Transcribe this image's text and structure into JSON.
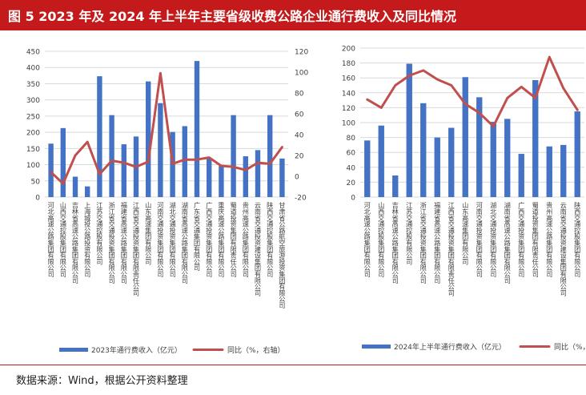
{
  "header": {
    "figure_title": "图 5   2023 年及 2024 年上半年主要省级收费公路企业通行费收入及同比情况"
  },
  "footer": {
    "source": "数据来源：Wind，根据公开资料整理"
  },
  "colors": {
    "bar": "#4472c4",
    "line": "#c0504d",
    "title_bg": "#c51a1b"
  },
  "chart_data": [
    {
      "type": "bar",
      "grid": true,
      "legend_position": "bottom",
      "categories": [
        "河北高速公路集团有限公司",
        "山西交通控股集团有限公司",
        "吉林省高速公路集团有限公司",
        "上海城投公路投资有限公司",
        "江苏交通控股有限公司",
        "浙江省交通投资集团有限公司",
        "福建省高速公路集团有限公司",
        "江西省交通投资集团有限责任公司",
        "山东高速集团有限公司",
        "河南交通投资集团有限公司",
        "湖北交通投资集团有限公司",
        "湖南省高速公路集团有限公司",
        "广东省交通集团有限公司",
        "广西交通投资集团有限公司",
        "重庆高速公路集团有限公司",
        "蜀道投资集团有限责任公司",
        "贵州高速公路集团有限公司",
        "云南省交通投资建设集团有限公司",
        "陕西交通控股集团有限公司",
        "甘肃省公路航空旅游投资集团有限公司"
      ],
      "ylim": [
        0,
        450
      ],
      "y2lim": [
        -20,
        120
      ],
      "yticks": [
        "0",
        "50",
        "100",
        "150",
        "200",
        "250",
        "300",
        "350",
        "400",
        "450"
      ],
      "y2ticks": [
        "-20",
        "0",
        "20",
        "40",
        "60",
        "80",
        "100",
        "120"
      ],
      "series": [
        {
          "name": "2023年通行费收入（亿元）",
          "axis": "left",
          "values": [
            165,
            213,
            63,
            33,
            373,
            253,
            163,
            187,
            357,
            290,
            201,
            219,
            420,
            121,
            96,
            253,
            126,
            145,
            253,
            119
          ]
        },
        {
          "name": "同比（%，右轴）",
          "axis": "right",
          "values": [
            4,
            -7,
            20,
            33,
            2,
            15,
            13,
            9,
            14,
            99,
            12,
            16,
            16,
            18,
            10,
            9,
            6,
            13,
            12,
            28
          ]
        }
      ]
    },
    {
      "type": "bar",
      "grid": true,
      "legend_position": "bottom",
      "categories": [
        "河北高速公路集团有限公司",
        "山西交通控股集团有限公司",
        "吉林省高速公路集团有限公司",
        "江苏交通控股有限公司",
        "浙江省交通投资集团有限公司",
        "福建省高速公路集团有限公司",
        "江西省交通投资集团有限责任公司",
        "山东高速集团有限公司",
        "河南交通投资集团有限公司",
        "湖北交通投资集团有限公司",
        "湖南省高速公路集团有限公司",
        "广西交通投资集团有限公司",
        "蜀道投资集团有限责任公司",
        "贵州高速公路集团有限公司",
        "云南省交通投资建设集团有限公司",
        "陕西交通控股集团有限公司"
      ],
      "ylim": [
        0,
        200
      ],
      "yticks": [
        "0",
        "20",
        "40",
        "60",
        "80",
        "100",
        "120",
        "140",
        "160",
        "180",
        "200"
      ],
      "series": [
        {
          "name": "2024年上半年通行费收入（亿元）",
          "axis": "left",
          "values": [
            76,
            96,
            29,
            179,
            126,
            80,
            93,
            161,
            134,
            101,
            105,
            58,
            157,
            68,
            70,
            115
          ]
        },
        {
          "name": "同比（%，右轴）",
          "axis": "right",
          "values": [
            131,
            120,
            150,
            163,
            170,
            158,
            150,
            125,
            113,
            95,
            133,
            148,
            133,
            188,
            146,
            117
          ]
        }
      ]
    }
  ]
}
